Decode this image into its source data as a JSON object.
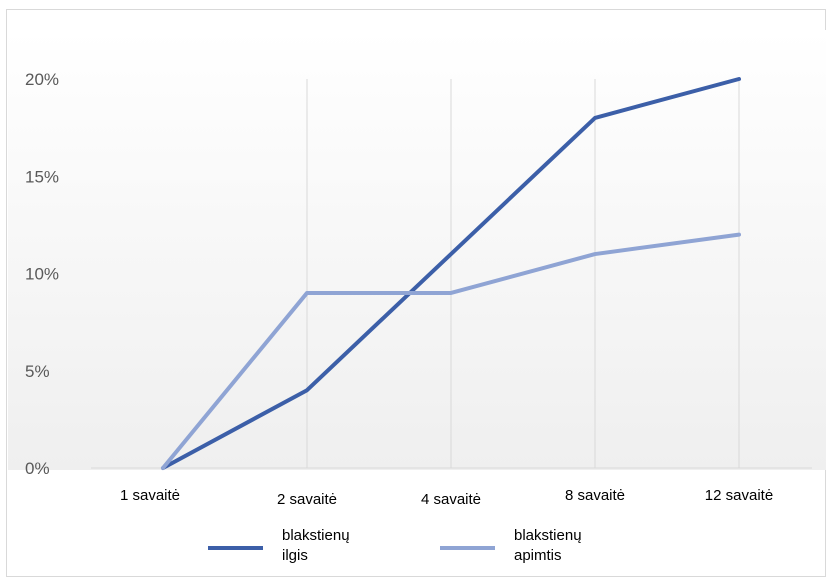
{
  "chart_data": {
    "type": "line",
    "categories": [
      "1 savaitė",
      "2 savaitė",
      "4 savaitė",
      "8 savaitė",
      "12 savaitė"
    ],
    "series": [
      {
        "name": "blakstienų ilgis",
        "name_lines": [
          "blakstienų",
          "ilgis"
        ],
        "values": [
          0,
          4,
          11,
          18,
          20
        ],
        "color": "#3c5fa8"
      },
      {
        "name": "blakstienų apimtis",
        "name_lines": [
          "blakstienų",
          "apimtis"
        ],
        "values": [
          0,
          9,
          9,
          11,
          12
        ],
        "color": "#8fa4d4"
      }
    ],
    "yticks": [
      "0%",
      "5%",
      "10%",
      "15%",
      "20%"
    ],
    "ytick_values": [
      0,
      5,
      10,
      15,
      20
    ],
    "ylim": [
      0,
      20
    ],
    "vertical_gridlines": true,
    "legend_position": "bottom",
    "background_gradient": [
      "#ffffff",
      "#efefef"
    ]
  }
}
